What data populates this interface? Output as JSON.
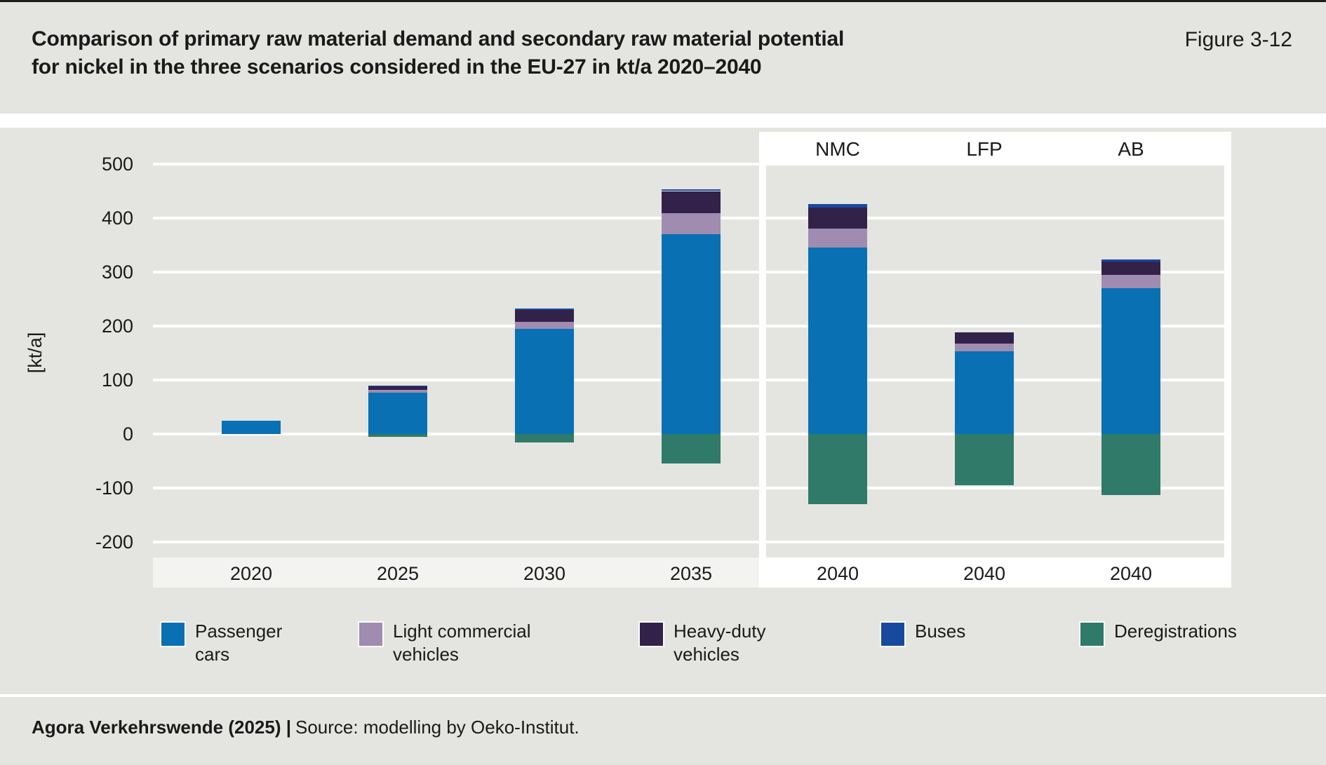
{
  "header": {
    "title_line1": "Comparison of primary raw material demand and secondary raw material potential",
    "title_line2": "for nickel in the three scenarios considered in the EU-27 in kt/a 2020–2040",
    "figure_label": "Figure 3-12"
  },
  "chart_data": {
    "type": "bar",
    "stacked": true,
    "title": "Comparison of primary raw material demand and secondary raw material potential for nickel in the three scenarios considered in the EU-27 in kt/a 2020–2040",
    "ylabel": "[kt/a]",
    "unit_label": "[kt/a]",
    "ylim": [
      -250,
      550
    ],
    "yticks": [
      500,
      400,
      300,
      200,
      100,
      0,
      -100,
      -200
    ],
    "grid": true,
    "legend_position": "bottom",
    "categories": [
      "2020",
      "2025",
      "2030",
      "2035",
      "2040",
      "2040",
      "2040"
    ],
    "scenario_headers": [
      "NMC",
      "LFP",
      "AB"
    ],
    "series": [
      {
        "name": "Passenger cars",
        "color": "#0870b3",
        "values": [
          25,
          77,
          195,
          370,
          345,
          153,
          270
        ]
      },
      {
        "name": "Light commercial vehicles",
        "color": "#a08cb0",
        "values": [
          0,
          5,
          13,
          39,
          35,
          15,
          25
        ]
      },
      {
        "name": "Heavy-duty vehicles",
        "color": "#32224a",
        "values": [
          0,
          6,
          22,
          41,
          40,
          20,
          25
        ]
      },
      {
        "name": "Buses",
        "color": "#174a9f",
        "values": [
          0,
          1,
          3,
          3,
          6,
          0,
          4
        ]
      },
      {
        "name": "Deregistrations",
        "color": "#2f7a69",
        "values": [
          0,
          -5,
          -16,
          -55,
          -130,
          -95,
          -113
        ]
      }
    ]
  },
  "legend": {
    "items": [
      {
        "label_lines": [
          "Passenger",
          "cars"
        ],
        "color": "#0870b3"
      },
      {
        "label_lines": [
          "Light commercial",
          "vehicles"
        ],
        "color": "#a08cb0"
      },
      {
        "label_lines": [
          "Heavy-duty",
          "vehicles"
        ],
        "color": "#32224a"
      },
      {
        "label_lines": [
          "Buses"
        ],
        "color": "#174a9f"
      },
      {
        "label_lines": [
          "Deregistrations"
        ],
        "color": "#2f7a69"
      }
    ]
  },
  "footer": {
    "bold": "Agora Verkehrswende (2025) |",
    "regular": "Source: modelling by Oeko-Institut."
  }
}
